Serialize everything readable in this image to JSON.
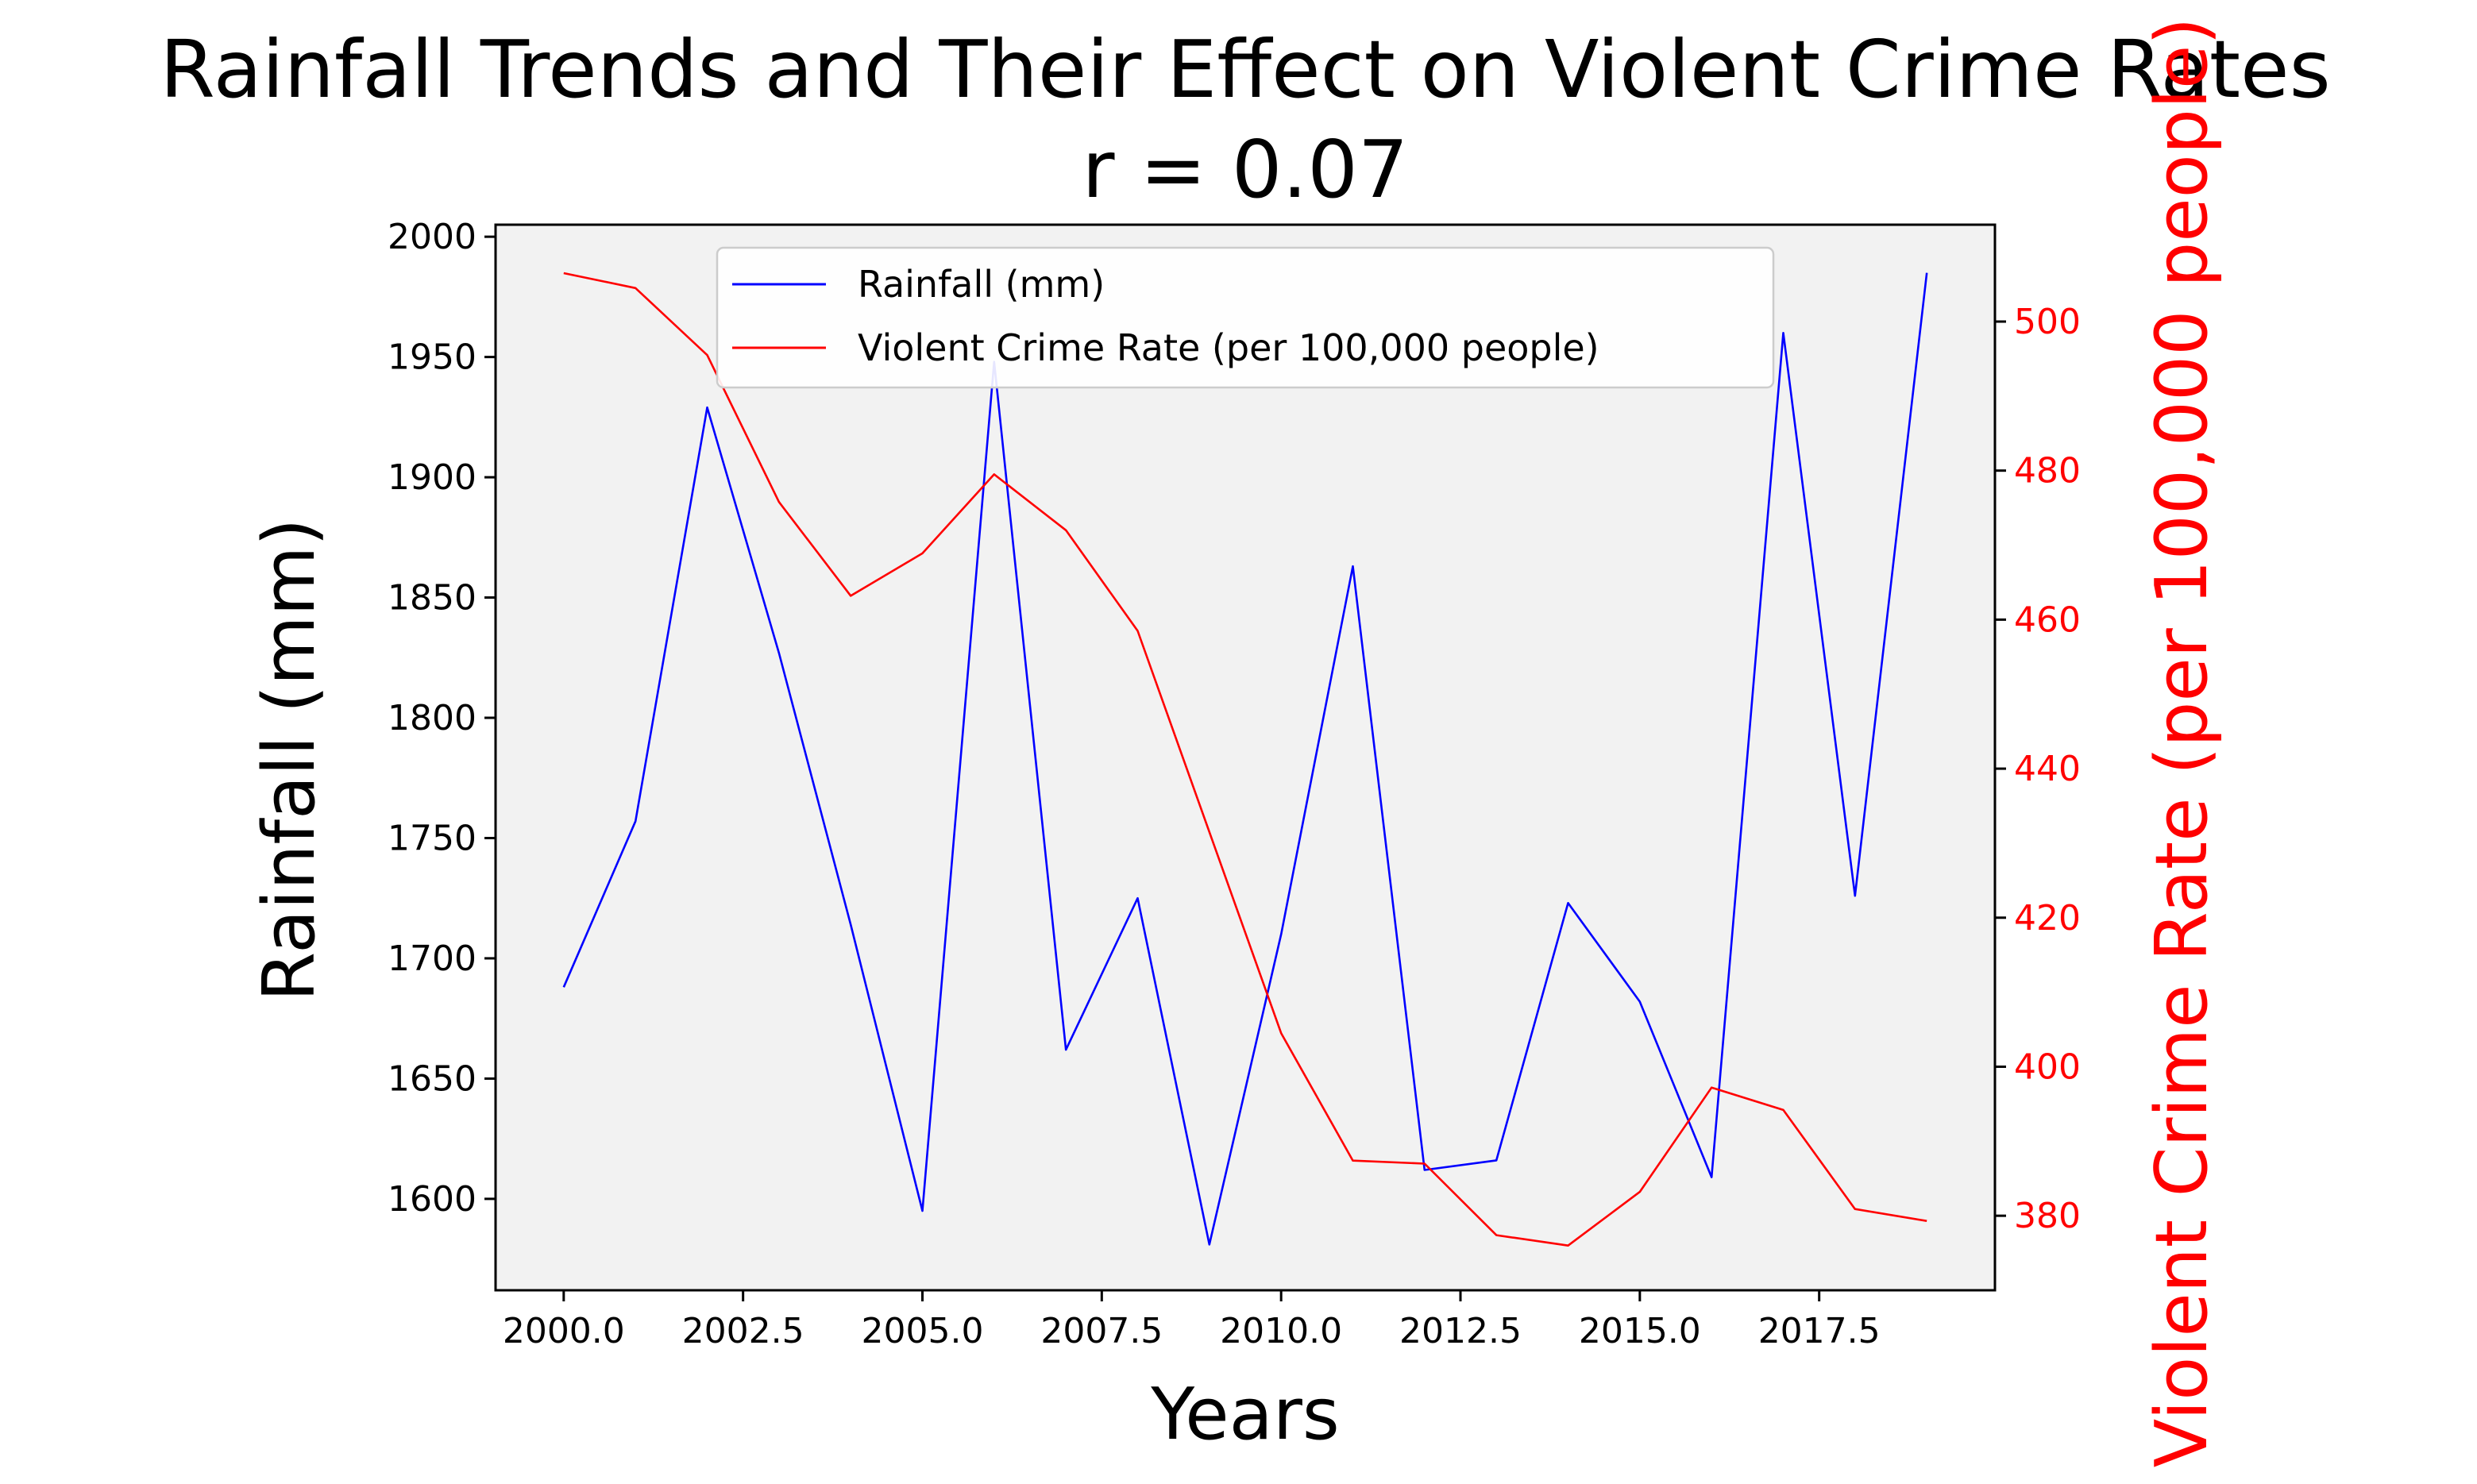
{
  "chart_data": {
    "type": "line",
    "title": "Rainfall Trends and Their Effect on Violent Crime Rates",
    "subtitle": "r = 0.07",
    "xlabel": "Years",
    "ylabel": "Rainfall (mm)",
    "ylabel_right": "Violent Crime Rate (per 100,000 people)",
    "x": [
      2000,
      2001,
      2002,
      2003,
      2004,
      2005,
      2006,
      2007,
      2008,
      2009,
      2010,
      2011,
      2012,
      2013,
      2014,
      2015,
      2016,
      2017,
      2018,
      2019
    ],
    "xlim": [
      1999.05,
      2019.95
    ],
    "ylim": [
      1562,
      2005
    ],
    "ylim_right": [
      370,
      513
    ],
    "x_ticks": [
      2000.0,
      2002.5,
      2005.0,
      2007.5,
      2010.0,
      2012.5,
      2015.0,
      2017.5
    ],
    "x_tick_labels": [
      "2000.0",
      "2002.5",
      "2005.0",
      "2007.5",
      "2010.0",
      "2012.5",
      "2015.0",
      "2017.5"
    ],
    "y_ticks": [
      1600,
      1650,
      1700,
      1750,
      1800,
      1850,
      1900,
      1950,
      2000
    ],
    "y_tick_labels": [
      "1600",
      "1650",
      "1700",
      "1750",
      "1800",
      "1850",
      "1900",
      "1950",
      "2000"
    ],
    "y_right_ticks": [
      380,
      400,
      420,
      440,
      460,
      480,
      500
    ],
    "y_right_tick_labels": [
      "380",
      "400",
      "420",
      "440",
      "460",
      "480",
      "500"
    ],
    "grid": false,
    "legend": "upper-center",
    "plot_background": "#f2f2f2",
    "series": [
      {
        "name": "Rainfall (mm)",
        "axis": "left",
        "color": "#0000ff",
        "values": [
          1688,
          1757,
          1929,
          1827,
          1714,
          1595,
          1948,
          1662,
          1725,
          1581,
          1710,
          1863,
          1612,
          1616,
          1723,
          1682,
          1609,
          1960,
          1726,
          1985
        ]
      },
      {
        "name": "Violent Crime Rate (per 100,000 people)",
        "axis": "right",
        "color": "#ff0000",
        "values": [
          506.5,
          504.5,
          495.5,
          475.8,
          463.2,
          468.9,
          479.5,
          472.0,
          458.5,
          431.5,
          404.5,
          387.4,
          387.0,
          377.4,
          376.0,
          383.2,
          397.2,
          394.2,
          380.9,
          379.3
        ]
      }
    ]
  }
}
